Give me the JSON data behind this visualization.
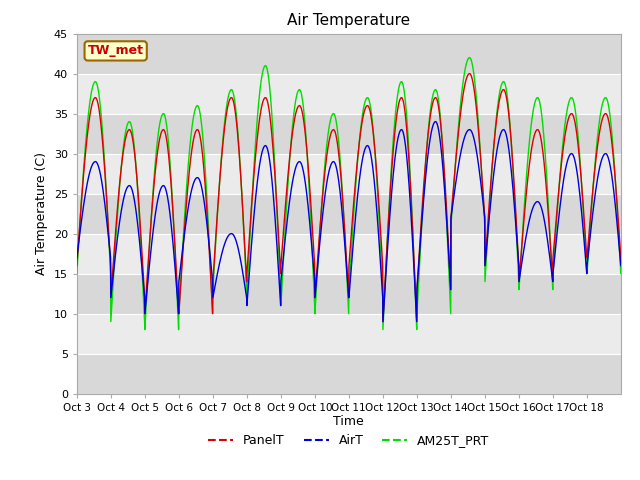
{
  "title": "Air Temperature",
  "ylabel": "Air Temperature (C)",
  "xlabel": "Time",
  "ylim": [
    0,
    45
  ],
  "yticks": [
    0,
    5,
    10,
    15,
    20,
    25,
    30,
    35,
    40,
    45
  ],
  "xtick_labels": [
    "Oct 3",
    "Oct 4",
    "Oct 5",
    "Oct 6",
    "Oct 7",
    "Oct 8",
    "Oct 9",
    "Oct 10",
    "Oct 11",
    "Oct 12",
    "Oct 13",
    "Oct 14",
    "Oct 15",
    "Oct 16",
    "Oct 17",
    "Oct 18"
  ],
  "annotation_text": "TW_met",
  "annotation_color": "#cc0000",
  "annotation_bg": "#ffffcc",
  "annotation_border": "#996600",
  "panel_color": "#dd0000",
  "air_color": "#0000dd",
  "am25_color": "#00dd00",
  "bg_color": "#e8e8e8",
  "band1_color": "#d8d8d8",
  "band2_color": "#ebebeb",
  "grid_color": "#ffffff",
  "legend_labels": [
    "PanelT",
    "AirT",
    "AM25T_PRT"
  ],
  "n_days": 16,
  "day_peaks_panel": [
    37,
    33,
    33,
    33,
    37,
    37,
    36,
    33,
    36,
    37,
    37,
    40,
    38,
    33,
    35,
    35
  ],
  "day_troughs_panel": [
    16,
    12,
    10,
    10,
    14,
    15,
    16,
    12,
    16,
    9,
    13,
    22,
    16,
    14,
    17,
    17
  ],
  "day_peaks_air": [
    29,
    26,
    26,
    27,
    20,
    31,
    29,
    29,
    31,
    33,
    34,
    33,
    33,
    24,
    30,
    30
  ],
  "day_troughs_air": [
    17,
    12,
    10,
    14,
    12,
    11,
    14,
    12,
    12,
    9,
    13,
    22,
    16,
    14,
    15,
    16
  ],
  "day_peaks_am25": [
    39,
    34,
    35,
    36,
    38,
    41,
    38,
    35,
    37,
    39,
    38,
    42,
    39,
    37,
    37,
    37
  ],
  "day_troughs_am25": [
    15,
    9,
    8,
    10,
    13,
    12,
    11,
    10,
    13,
    8,
    10,
    21,
    14,
    13,
    15,
    15
  ],
  "figsize": [
    6.4,
    4.8
  ],
  "dpi": 100
}
